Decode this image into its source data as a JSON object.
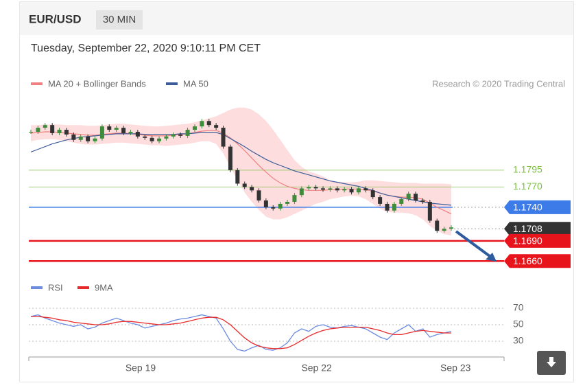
{
  "header": {
    "symbol": "EUR/USD",
    "interval": "30 MIN",
    "timestamp": "Tuesday, September 22, 2020 9:10:11 PM CET"
  },
  "chart_data": [
    {
      "type": "candlestick",
      "credit": "Research © 2020 Trading Central",
      "xlim": [
        -0.3,
        66.4
      ],
      "ylim": [
        1.1645,
        1.1905
      ],
      "up_color": "#3c8c3c",
      "down_color": "#333333",
      "close": [
        1.1852,
        1.1858,
        1.1862,
        1.185,
        1.1855,
        1.1848,
        1.184,
        1.1845,
        1.1838,
        1.1842,
        1.186,
        1.1855,
        1.1858,
        1.185,
        1.1852,
        1.1845,
        1.1843,
        1.1838,
        1.1842,
        1.1845,
        1.1848,
        1.1846,
        1.1855,
        1.186,
        1.1868,
        1.1862,
        1.1858,
        1.183,
        1.1795,
        1.1775,
        1.177,
        1.1765,
        1.175,
        1.174,
        1.1738,
        1.1745,
        1.1748,
        1.1758,
        1.1768,
        1.177,
        1.1768,
        1.1766,
        1.1768,
        1.1765,
        1.1767,
        1.1762,
        1.1768,
        1.1765,
        1.1755,
        1.1745,
        1.1735,
        1.1745,
        1.1752,
        1.176,
        1.175,
        1.1748,
        1.172,
        1.1705,
        1.1708,
        1.171
      ],
      "series": [
        {
          "name": "MA 20 + Bollinger Bands",
          "color": "#f08080",
          "band_color": "#fdd5d5",
          "values": [
            1.185,
            1.1851,
            1.1852,
            1.1852,
            1.1851,
            1.185,
            1.1849,
            1.1848,
            1.1847,
            1.1847,
            1.1848,
            1.1849,
            1.185,
            1.185,
            1.1849,
            1.1848,
            1.1847,
            1.1846,
            1.1846,
            1.1846,
            1.1847,
            1.1848,
            1.1849,
            1.1851,
            1.1853,
            1.1854,
            1.1854,
            1.185,
            1.1843,
            1.1834,
            1.1824,
            1.1813,
            1.1802,
            1.1792,
            1.1783,
            1.1776,
            1.1771,
            1.1768,
            1.1766,
            1.1765,
            1.1765,
            1.1765,
            1.1766,
            1.1766,
            1.1767,
            1.1767,
            1.1767,
            1.1766,
            1.1764,
            1.1761,
            1.1758,
            1.1756,
            1.1755,
            1.1755,
            1.1754,
            1.1752,
            1.1746,
            1.174,
            1.1735,
            1.173
          ],
          "upper": [
            1.1862,
            1.1862,
            1.1863,
            1.1863,
            1.1863,
            1.1862,
            1.1862,
            1.1862,
            1.1861,
            1.1861,
            1.1862,
            1.1863,
            1.1864,
            1.1864,
            1.1863,
            1.1862,
            1.1861,
            1.186,
            1.186,
            1.1861,
            1.1862,
            1.1863,
            1.1864,
            1.1866,
            1.1869,
            1.1872,
            1.1875,
            1.188,
            1.1885,
            1.1888,
            1.1888,
            1.1885,
            1.1878,
            1.1868,
            1.1855,
            1.184,
            1.1825,
            1.181,
            1.18,
            1.1793,
            1.179,
            1.1786,
            1.178,
            1.1778,
            1.1777,
            1.1777,
            1.1778,
            1.178,
            1.178,
            1.1779,
            1.1778,
            1.1777,
            1.1776,
            1.1776,
            1.1776,
            1.1775,
            1.1775,
            1.1775,
            1.1775,
            1.1774
          ],
          "lower": [
            1.1838,
            1.184,
            1.1841,
            1.1841,
            1.184,
            1.1838,
            1.1836,
            1.1834,
            1.1833,
            1.1833,
            1.1834,
            1.1835,
            1.1836,
            1.1836,
            1.1835,
            1.1834,
            1.1833,
            1.1832,
            1.1832,
            1.1831,
            1.1832,
            1.1833,
            1.1834,
            1.1836,
            1.1838,
            1.1838,
            1.1834,
            1.182,
            1.18,
            1.178,
            1.1762,
            1.1748,
            1.1736,
            1.1726,
            1.1722,
            1.1722,
            1.1725,
            1.173,
            1.1735,
            1.174,
            1.1745,
            1.1748,
            1.1752,
            1.1754,
            1.1756,
            1.1757,
            1.1756,
            1.1752,
            1.1745,
            1.1738,
            1.1733,
            1.1732,
            1.1732,
            1.1731,
            1.1728,
            1.1722,
            1.1712,
            1.1705,
            1.17,
            1.1698
          ]
        },
        {
          "name": "MA 50",
          "color": "#3d5c99",
          "values": [
            1.1822,
            1.1826,
            1.183,
            1.1834,
            1.1837,
            1.184,
            1.1842,
            1.1844,
            1.1845,
            1.1846,
            1.1847,
            1.1848,
            1.1849,
            1.1849,
            1.1849,
            1.1849,
            1.1848,
            1.1848,
            1.1848,
            1.1848,
            1.1848,
            1.1849,
            1.1849,
            1.185,
            1.1851,
            1.1851,
            1.1851,
            1.1848,
            1.1842,
            1.1836,
            1.183,
            1.1823,
            1.1817,
            1.1811,
            1.1806,
            1.1802,
            1.1798,
            1.1794,
            1.1791,
            1.1788,
            1.1785,
            1.1782,
            1.1779,
            1.1777,
            1.1775,
            1.1773,
            1.1771,
            1.1768,
            1.1765,
            1.1761,
            1.1758,
            1.1756,
            1.1754,
            1.1752,
            1.175,
            1.1748,
            1.1746,
            1.1745,
            1.1744,
            1.1743
          ]
        }
      ],
      "levels": [
        {
          "value": 1.1795,
          "color": "#7cc042",
          "style": "line"
        },
        {
          "value": 1.177,
          "label": "1.1770",
          "color": "#7cc042",
          "style": "line"
        },
        {
          "value": 1.174,
          "label": "1.1740",
          "color": "#3d7be8",
          "style": "tag"
        },
        {
          "value": 1.1708,
          "color": "#333333",
          "style": "dotted-tag"
        },
        {
          "value": 1.169,
          "label": "1.1690",
          "color": "#e8141c",
          "style": "thick-tag"
        },
        {
          "value": 1.166,
          "label": "1.1660",
          "color": "#e8141c",
          "style": "thick-tag"
        }
      ]
    },
    {
      "type": "line",
      "xlim": [
        -0.3,
        66.4
      ],
      "ylim": [
        15,
        77.5
      ],
      "yticks": [
        70,
        50,
        30
      ],
      "xticks": [
        {
          "value": 15.4,
          "label": "Sep 19"
        },
        {
          "value": 40.1,
          "label": "Sep 22"
        },
        {
          "value": 59.6,
          "label": "Sep 23"
        }
      ],
      "series": [
        {
          "name": "RSI",
          "color": "#6b8ce0",
          "values": [
            60,
            62,
            58,
            55,
            52,
            50,
            48,
            50,
            45,
            47,
            52,
            55,
            58,
            55,
            52,
            50,
            46,
            48,
            50,
            52,
            55,
            57,
            58,
            60,
            62,
            60,
            58,
            45,
            30,
            20,
            18,
            22,
            25,
            20,
            19,
            22,
            28,
            40,
            45,
            42,
            48,
            50,
            47,
            46,
            48,
            49,
            47,
            45,
            40,
            35,
            32,
            40,
            45,
            50,
            42,
            45,
            35,
            38,
            40,
            42
          ]
        },
        {
          "name": "9MA",
          "color": "#e8292a",
          "values": [
            60,
            60,
            59,
            58,
            56,
            55,
            53,
            52,
            51,
            50,
            50,
            51,
            53,
            54,
            54,
            53,
            52,
            51,
            50,
            50,
            51,
            52,
            54,
            56,
            58,
            59,
            59,
            56,
            50,
            42,
            34,
            28,
            24,
            22,
            21,
            21,
            22,
            26,
            31,
            36,
            40,
            43,
            45,
            46,
            47,
            47,
            47,
            47,
            45,
            43,
            40,
            38,
            38,
            40,
            42,
            43,
            42,
            41,
            40,
            40
          ]
        }
      ]
    }
  ]
}
